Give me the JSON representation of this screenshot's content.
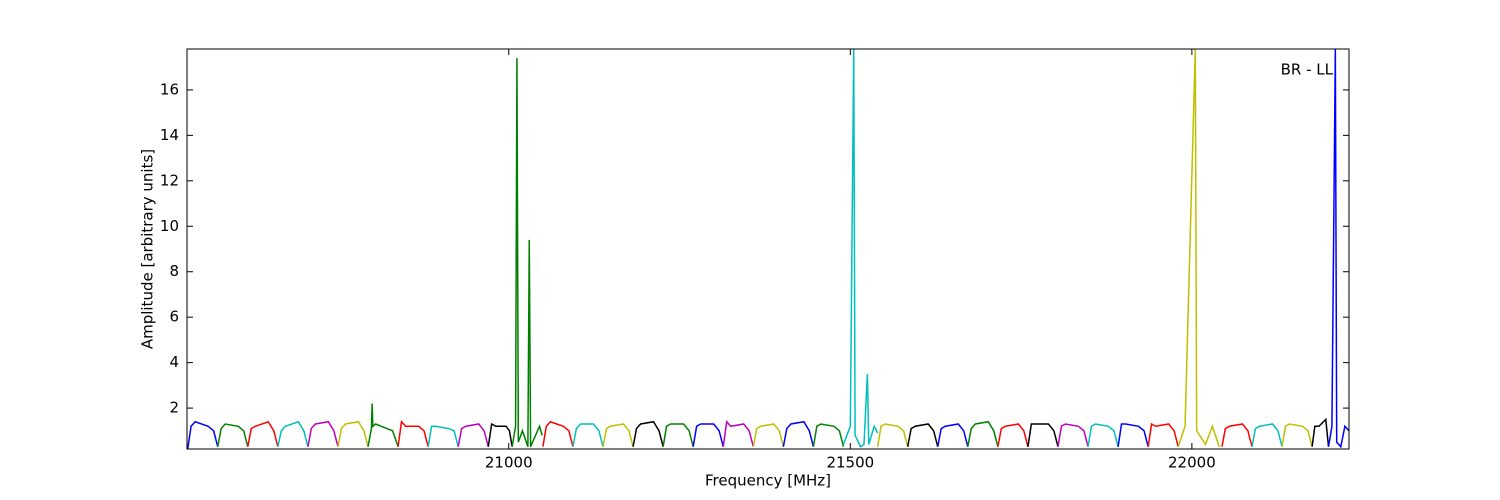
{
  "chart_data": {
    "type": "line",
    "annotation": "BR - LL",
    "xlabel": "Frequency [MHz]",
    "ylabel": "Amplitude [arbitrary units]",
    "xlim": [
      20529,
      22230
    ],
    "ylim": [
      0.2,
      17.8
    ],
    "xticks": [
      21000,
      21500,
      22000
    ],
    "yticks": [
      2,
      4,
      6,
      8,
      10,
      12,
      14,
      16
    ],
    "series": [
      {
        "color": "#0000ff",
        "x": [
          20530,
          20535,
          20541,
          20560,
          20568,
          20574
        ],
        "values": [
          0.2,
          1.2,
          1.4,
          1.2,
          1.0,
          0.3
        ]
      },
      {
        "color": "#008000",
        "x": [
          20574,
          20579,
          20585,
          20604,
          20612,
          20618
        ],
        "values": [
          0.3,
          1.1,
          1.3,
          1.2,
          1.0,
          0.3
        ]
      },
      {
        "color": "#ff0000",
        "x": [
          20618,
          20623,
          20629,
          20648,
          20656,
          20662
        ],
        "values": [
          0.3,
          1.1,
          1.2,
          1.4,
          1.0,
          0.3
        ]
      },
      {
        "color": "#00bfbf",
        "x": [
          20662,
          20667,
          20673,
          20692,
          20700,
          20706
        ],
        "values": [
          0.3,
          1.0,
          1.2,
          1.4,
          1.0,
          0.3
        ]
      },
      {
        "color": "#bf00bf",
        "x": [
          20706,
          20711,
          20717,
          20736,
          20744,
          20750
        ],
        "values": [
          0.3,
          1.1,
          1.3,
          1.4,
          1.0,
          0.3
        ]
      },
      {
        "color": "#bfbf00",
        "x": [
          20750,
          20755,
          20761,
          20780,
          20788,
          20794
        ],
        "values": [
          0.3,
          1.1,
          1.3,
          1.4,
          1.0,
          0.3
        ]
      },
      {
        "color": "#008000",
        "x": [
          20794,
          20799,
          20800,
          20801,
          20805,
          20830,
          20838
        ],
        "values": [
          0.3,
          1.1,
          2.2,
          1.2,
          1.3,
          1.0,
          0.3
        ]
      },
      {
        "color": "#ff0000",
        "x": [
          20838,
          20843,
          20849,
          20868,
          20876,
          20882
        ],
        "values": [
          0.3,
          1.4,
          1.2,
          1.2,
          1.0,
          0.3
        ]
      },
      {
        "color": "#00bfbf",
        "x": [
          20882,
          20887,
          20893,
          20912,
          20920,
          20926
        ],
        "values": [
          0.3,
          1.2,
          1.2,
          1.1,
          1.0,
          0.3
        ]
      },
      {
        "color": "#bf00bf",
        "x": [
          20926,
          20931,
          20937,
          20956,
          20964,
          20970
        ],
        "values": [
          0.3,
          1.1,
          1.2,
          1.3,
          1.0,
          0.3
        ]
      },
      {
        "color": "#000000",
        "x": [
          20970,
          20975,
          20981,
          20996,
          21001,
          21005
        ],
        "values": [
          0.3,
          1.3,
          1.2,
          1.2,
          1.0,
          0.3
        ]
      },
      {
        "color": "#008000",
        "x": [
          21005,
          21010,
          21012,
          21014,
          21020,
          21028,
          21030,
          21032,
          21045,
          21049
        ],
        "values": [
          0.3,
          1.2,
          17.4,
          0.5,
          1.0,
          0.3,
          9.4,
          0.3,
          1.2,
          0.8
        ]
      },
      {
        "color": "#ff0000",
        "x": [
          21050,
          21055,
          21061,
          21080,
          21088,
          21094
        ],
        "values": [
          0.3,
          1.2,
          1.4,
          1.2,
          1.0,
          0.3
        ]
      },
      {
        "color": "#00bfbf",
        "x": [
          21094,
          21099,
          21105,
          21124,
          21132,
          21138
        ],
        "values": [
          0.3,
          1.1,
          1.3,
          1.3,
          1.0,
          0.3
        ]
      },
      {
        "color": "#bfbf00",
        "x": [
          21138,
          21143,
          21149,
          21168,
          21176,
          21182
        ],
        "values": [
          0.3,
          1.1,
          1.2,
          1.3,
          1.0,
          0.3
        ]
      },
      {
        "color": "#000000",
        "x": [
          21182,
          21187,
          21193,
          21212,
          21220,
          21226
        ],
        "values": [
          0.3,
          1.1,
          1.3,
          1.4,
          1.0,
          0.3
        ]
      },
      {
        "color": "#008000",
        "x": [
          21226,
          21231,
          21237,
          21256,
          21264,
          21270
        ],
        "values": [
          0.3,
          1.2,
          1.3,
          1.3,
          1.0,
          0.3
        ]
      },
      {
        "color": "#0000ff",
        "x": [
          21270,
          21275,
          21281,
          21300,
          21308,
          21314
        ],
        "values": [
          0.3,
          1.2,
          1.3,
          1.3,
          1.0,
          0.3
        ]
      },
      {
        "color": "#bf00bf",
        "x": [
          21314,
          21319,
          21325,
          21344,
          21352,
          21358
        ],
        "values": [
          0.3,
          1.4,
          1.2,
          1.3,
          1.0,
          0.3
        ]
      },
      {
        "color": "#bfbf00",
        "x": [
          21358,
          21363,
          21369,
          21388,
          21396,
          21402
        ],
        "values": [
          0.3,
          1.1,
          1.2,
          1.3,
          1.0,
          0.3
        ]
      },
      {
        "color": "#0000ff",
        "x": [
          21402,
          21407,
          21413,
          21432,
          21440,
          21446
        ],
        "values": [
          0.3,
          1.1,
          1.3,
          1.4,
          1.0,
          0.3
        ]
      },
      {
        "color": "#008000",
        "x": [
          21446,
          21451,
          21457,
          21476,
          21484,
          21490
        ],
        "values": [
          0.3,
          1.2,
          1.3,
          1.2,
          1.0,
          0.3
        ]
      },
      {
        "color": "#00bfbf",
        "x": [
          21490,
          21500,
          21505,
          21507,
          21515,
          21520,
          21525,
          21527,
          21535,
          21540
        ],
        "values": [
          0.4,
          1.2,
          17.8,
          0.8,
          0.3,
          0.4,
          3.5,
          0.4,
          1.2,
          0.9
        ]
      },
      {
        "color": "#bfbf00",
        "x": [
          21540,
          21545,
          21551,
          21570,
          21578,
          21584
        ],
        "values": [
          0.3,
          1.2,
          1.3,
          1.2,
          1.0,
          0.3
        ]
      },
      {
        "color": "#000000",
        "x": [
          21584,
          21589,
          21595,
          21614,
          21622,
          21628
        ],
        "values": [
          0.3,
          1.1,
          1.2,
          1.3,
          1.0,
          0.3
        ]
      },
      {
        "color": "#0000ff",
        "x": [
          21628,
          21633,
          21639,
          21658,
          21666,
          21672
        ],
        "values": [
          0.3,
          1.1,
          1.2,
          1.3,
          1.0,
          0.3
        ]
      },
      {
        "color": "#008000",
        "x": [
          21672,
          21677,
          21683,
          21702,
          21710,
          21716
        ],
        "values": [
          0.3,
          1.1,
          1.3,
          1.4,
          1.0,
          0.3
        ]
      },
      {
        "color": "#ff0000",
        "x": [
          21716,
          21721,
          21727,
          21746,
          21754,
          21760
        ],
        "values": [
          0.3,
          1.1,
          1.2,
          1.3,
          1.0,
          0.3
        ]
      },
      {
        "color": "#000000",
        "x": [
          21760,
          21765,
          21771,
          21790,
          21798,
          21804
        ],
        "values": [
          0.3,
          1.3,
          1.3,
          1.3,
          1.0,
          0.3
        ]
      },
      {
        "color": "#bf00bf",
        "x": [
          21804,
          21809,
          21815,
          21834,
          21842,
          21848
        ],
        "values": [
          0.3,
          1.2,
          1.3,
          1.2,
          1.0,
          0.3
        ]
      },
      {
        "color": "#00bfbf",
        "x": [
          21848,
          21853,
          21859,
          21878,
          21886,
          21892
        ],
        "values": [
          0.3,
          1.2,
          1.3,
          1.2,
          1.0,
          0.3
        ]
      },
      {
        "color": "#0000ff",
        "x": [
          21892,
          21897,
          21903,
          21922,
          21930,
          21936
        ],
        "values": [
          0.3,
          1.3,
          1.3,
          1.2,
          1.0,
          0.3
        ]
      },
      {
        "color": "#ff0000",
        "x": [
          21936,
          21941,
          21947,
          21966,
          21974,
          21980
        ],
        "values": [
          0.3,
          1.3,
          1.2,
          1.3,
          1.0,
          0.3
        ]
      },
      {
        "color": "#bfbf00",
        "x": [
          21980,
          21990,
          22005,
          22007,
          22020,
          22030,
          22040
        ],
        "values": [
          0.3,
          1.2,
          17.8,
          1.0,
          0.4,
          1.2,
          0.3
        ]
      },
      {
        "color": "#ff0000",
        "x": [
          22044,
          22049,
          22055,
          22074,
          22082,
          22088
        ],
        "values": [
          0.3,
          1.1,
          1.2,
          1.3,
          1.0,
          0.3
        ]
      },
      {
        "color": "#00bfbf",
        "x": [
          22088,
          22093,
          22099,
          22118,
          22126,
          22132
        ],
        "values": [
          0.3,
          1.1,
          1.2,
          1.3,
          1.0,
          0.3
        ]
      },
      {
        "color": "#bfbf00",
        "x": [
          22132,
          22137,
          22143,
          22162,
          22170,
          22176
        ],
        "values": [
          0.3,
          1.2,
          1.3,
          1.2,
          1.0,
          0.3
        ]
      },
      {
        "color": "#000000",
        "x": [
          22176,
          22180,
          22186,
          22196,
          22200
        ],
        "values": [
          0.3,
          1.2,
          1.2,
          1.5,
          0.3
        ]
      },
      {
        "color": "#0000ff",
        "x": [
          22200,
          22205,
          22210,
          22212,
          22218,
          22224,
          22230
        ],
        "values": [
          0.3,
          1.2,
          17.8,
          0.5,
          0.3,
          1.2,
          1.0
        ]
      }
    ]
  }
}
